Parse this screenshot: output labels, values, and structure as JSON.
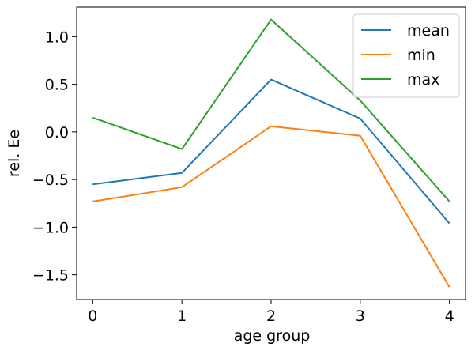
{
  "chart_data": {
    "type": "line",
    "title": "",
    "xlabel": "age group",
    "ylabel": "rel. Ee",
    "x": [
      0,
      1,
      2,
      3,
      4
    ],
    "x_ticks": [
      "0",
      "1",
      "2",
      "3",
      "4"
    ],
    "y_ticks": [
      "1.0",
      "0.5",
      "0.0",
      "−0.5",
      "−1.0",
      "−1.5"
    ],
    "y_tick_values": [
      1.0,
      0.5,
      0.0,
      -0.5,
      -1.0,
      -1.5
    ],
    "xlim": [
      -0.18,
      4.18
    ],
    "ylim": [
      -1.76,
      1.31
    ],
    "grid": false,
    "legend_position": "top-right",
    "series": [
      {
        "name": "mean",
        "color": "#1f77b4",
        "values": [
          -0.55,
          -0.43,
          0.55,
          0.14,
          -0.96
        ]
      },
      {
        "name": "min",
        "color": "#ff7f0e",
        "values": [
          -0.73,
          -0.58,
          0.06,
          -0.04,
          -1.63
        ]
      },
      {
        "name": "max",
        "color": "#2ca02c",
        "values": [
          0.15,
          -0.18,
          1.18,
          0.33,
          -0.73
        ]
      }
    ]
  }
}
